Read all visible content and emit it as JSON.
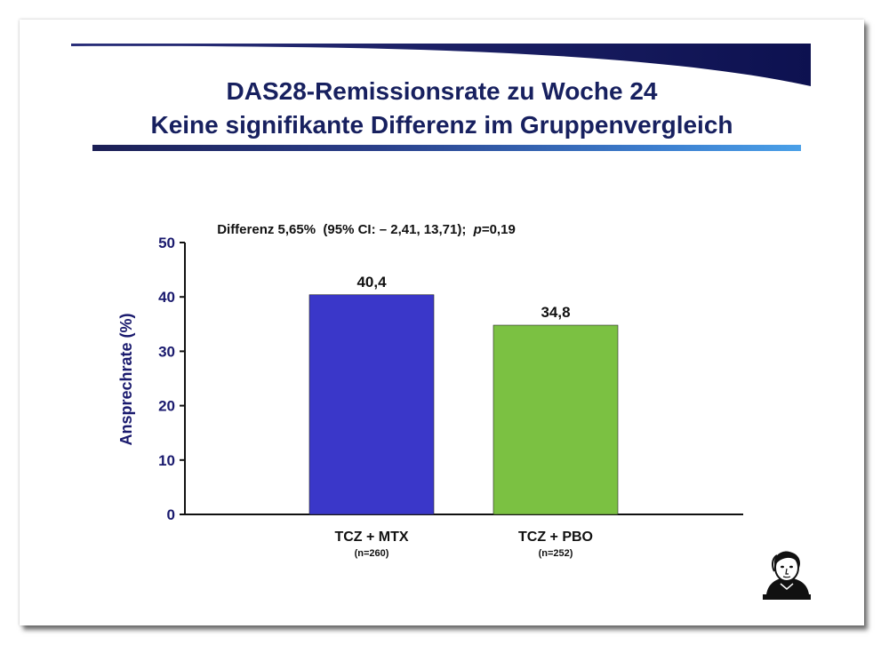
{
  "slide": {
    "title_line1": "DAS28-Remissionsrate zu Woche 24",
    "title_line2": "Keine signifikante Differenz im Gruppenvergleich"
  },
  "colors": {
    "title": "#17205f",
    "axis_text": "#1a1a6e",
    "bar_tcz_mtx": "#3a37c9",
    "bar_tcz_pbo": "#7bc142"
  },
  "icons": {
    "logo": "portrait-seal-icon"
  },
  "chart_data": {
    "type": "bar",
    "title": "",
    "annotation": {
      "prefix": "Differenz 5,65%  (95% CI: – 2,41, 13,71);  ",
      "p_symbol": "p",
      "p_value": "=0,19"
    },
    "categories": [
      "TCZ + MTX",
      "TCZ + PBO"
    ],
    "category_sublabels": [
      "(n=260)",
      "(n=252)"
    ],
    "values": [
      40.4,
      34.8
    ],
    "data_labels": [
      "40,4",
      "34,8"
    ],
    "xlabel": "",
    "ylabel": "Ansprechrate (%)",
    "ylim": [
      0,
      50
    ],
    "yticks": [
      0,
      10,
      20,
      30,
      40,
      50
    ],
    "grid": false,
    "legend": "none"
  }
}
